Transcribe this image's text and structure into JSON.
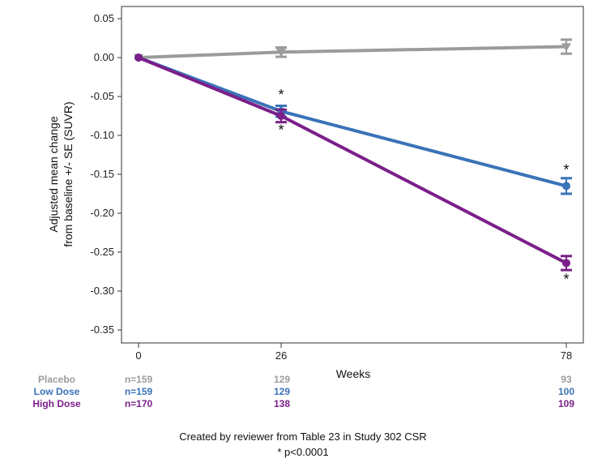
{
  "chart_data": {
    "type": "line",
    "xlabel": "Weeks",
    "ylabel_lines": [
      "Adjusted mean change",
      "from baseline +/- SE (SUVR)"
    ],
    "x": [
      0,
      26,
      78
    ],
    "x_ticks": [
      "0",
      "26",
      "78"
    ],
    "ylim": [
      -0.38,
      0.06
    ],
    "y_ticks": [
      "0.05",
      "0.00",
      "-0.05",
      "-0.10",
      "-0.15",
      "-0.20",
      "-0.25",
      "-0.30",
      "-0.35"
    ],
    "y_tick_values": [
      0.05,
      0.0,
      -0.05,
      -0.1,
      -0.15,
      -0.2,
      -0.25,
      -0.3,
      -0.35
    ],
    "series": [
      {
        "name": "Placebo",
        "color": "#9b9b9b",
        "values": [
          0.0,
          0.007,
          0.014
        ],
        "se": [
          0.0,
          0.006,
          0.009
        ],
        "marker": "triangle"
      },
      {
        "name": "Low Dose",
        "color": "#3a73b8",
        "values": [
          0.0,
          -0.069,
          -0.165
        ],
        "se": [
          0.0,
          0.007,
          0.01
        ],
        "marker": "circle"
      },
      {
        "name": "High Dose",
        "color": "#7b1f8a",
        "values": [
          0.0,
          -0.075,
          -0.264
        ],
        "se": [
          0.0,
          0.008,
          0.009
        ],
        "marker": "circle"
      }
    ],
    "annotations": [
      {
        "text": "*",
        "x": 26,
        "y": -0.047
      },
      {
        "text": "*",
        "x": 26,
        "y": -0.092
      },
      {
        "text": "*",
        "x": 78,
        "y": -0.143
      },
      {
        "text": "*",
        "x": 78,
        "y": -0.284
      }
    ],
    "risk_table": [
      {
        "label": "Placebo",
        "color": "#9b9b9b",
        "values": [
          "n=159",
          "129",
          "93"
        ]
      },
      {
        "label": "Low Dose",
        "color": "#3a73b8",
        "values": [
          "n=159",
          "129",
          "100"
        ]
      },
      {
        "label": "High Dose",
        "color": "#7b1f8a",
        "values": [
          "n=170",
          "138",
          "109"
        ]
      }
    ]
  },
  "caption": {
    "line1": "Created by reviewer from Table 23 in Study 302 CSR",
    "line2": "* p<0.0001"
  }
}
